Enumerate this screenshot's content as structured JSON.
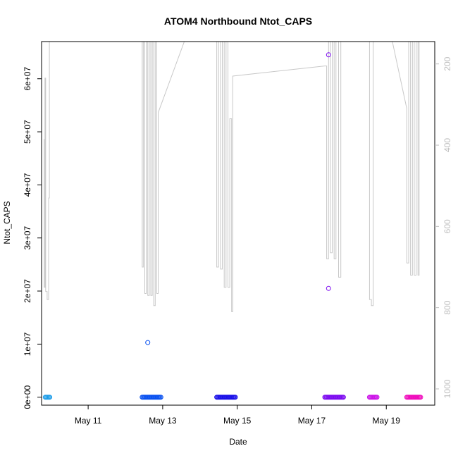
{
  "chart_data": {
    "type": "scatter",
    "title": "ATOM4 Northbound Ntot_CAPS",
    "xlabel": "Date",
    "ylabel": "Ntot_CAPS",
    "x_ticks": [
      {
        "day": 11,
        "label": "May 11"
      },
      {
        "day": 13,
        "label": "May 13"
      },
      {
        "day": 15,
        "label": "May 15"
      },
      {
        "day": 17,
        "label": "May 17"
      },
      {
        "day": 19,
        "label": "May 19"
      }
    ],
    "xlim_days": [
      9.75,
      20.3
    ],
    "ylim": [
      -1500000,
      67000000
    ],
    "y_ticks": [
      {
        "value": 0,
        "label": "0e+00"
      },
      {
        "value": 10000000,
        "label": "1e+07"
      },
      {
        "value": 20000000,
        "label": "2e+07"
      },
      {
        "value": 30000000,
        "label": "3e+07"
      },
      {
        "value": 40000000,
        "label": "4e+07"
      },
      {
        "value": 50000000,
        "label": "5e+07"
      },
      {
        "value": 60000000,
        "label": "6e+07"
      }
    ],
    "right_axis": {
      "ylim": [
        1040,
        145
      ],
      "color": "#bdbdbd",
      "ticks": [
        {
          "value": 200,
          "label": "200"
        },
        {
          "value": 400,
          "label": "400"
        },
        {
          "value": 600,
          "label": "600"
        },
        {
          "value": 800,
          "label": "800"
        },
        {
          "value": 1000,
          "label": "1000"
        }
      ]
    },
    "series": [
      {
        "color": "#1c9ce8",
        "clusters": [
          [
            9.85,
            9.97
          ]
        ],
        "outliers": []
      },
      {
        "color": "#0a52f0",
        "clusters": [
          [
            12.45,
            12.95
          ]
        ],
        "outliers": [
          [
            12.6,
            10300000
          ]
        ]
      },
      {
        "color": "#1a10e8",
        "clusters": [
          [
            14.45,
            14.95
          ]
        ],
        "outliers": []
      },
      {
        "color": "#7d0cf0",
        "clusters": [
          [
            17.35,
            17.85
          ]
        ],
        "outliers": [
          [
            17.45,
            64500000
          ],
          [
            17.45,
            20500000
          ]
        ]
      },
      {
        "color": "#cc14e8",
        "clusters": [
          [
            18.55,
            18.75
          ]
        ],
        "outliers": []
      },
      {
        "color": "#f00cbc",
        "clusters": [
          [
            19.55,
            19.92
          ]
        ],
        "outliers": []
      }
    ],
    "depth_line": {
      "color": "#c8c8c8",
      "points": [
        [
          9.82,
          385
        ],
        [
          9.82,
          750
        ],
        [
          9.84,
          750
        ],
        [
          9.84,
          235
        ],
        [
          9.86,
          235
        ],
        [
          9.86,
          760
        ],
        [
          9.9,
          760
        ],
        [
          9.9,
          780
        ],
        [
          9.94,
          780
        ],
        [
          9.94,
          530
        ],
        [
          9.96,
          530
        ],
        [
          9.96,
          140
        ],
        [
          12.45,
          140
        ],
        [
          12.45,
          700
        ],
        [
          12.48,
          700
        ],
        [
          12.48,
          140
        ],
        [
          12.52,
          140
        ],
        [
          12.52,
          765
        ],
        [
          12.56,
          765
        ],
        [
          12.56,
          140
        ],
        [
          12.6,
          140
        ],
        [
          12.6,
          770
        ],
        [
          12.64,
          770
        ],
        [
          12.64,
          140
        ],
        [
          12.68,
          140
        ],
        [
          12.68,
          770
        ],
        [
          12.72,
          770
        ],
        [
          12.72,
          140
        ],
        [
          12.76,
          140
        ],
        [
          12.76,
          795
        ],
        [
          12.8,
          795
        ],
        [
          12.8,
          140
        ],
        [
          12.84,
          140
        ],
        [
          12.84,
          765
        ],
        [
          12.88,
          765
        ],
        [
          12.88,
          320
        ],
        [
          13.6,
          140
        ],
        [
          14.45,
          140
        ],
        [
          14.45,
          700
        ],
        [
          14.5,
          700
        ],
        [
          14.5,
          140
        ],
        [
          14.55,
          140
        ],
        [
          14.55,
          705
        ],
        [
          14.6,
          705
        ],
        [
          14.6,
          140
        ],
        [
          14.65,
          140
        ],
        [
          14.65,
          750
        ],
        [
          14.7,
          750
        ],
        [
          14.7,
          140
        ],
        [
          14.75,
          140
        ],
        [
          14.75,
          750
        ],
        [
          14.8,
          750
        ],
        [
          14.8,
          335
        ],
        [
          14.85,
          335
        ],
        [
          14.85,
          810
        ],
        [
          14.88,
          810
        ],
        [
          14.88,
          230
        ],
        [
          17.35,
          205
        ],
        [
          17.4,
          205
        ],
        [
          17.4,
          680
        ],
        [
          17.45,
          680
        ],
        [
          17.45,
          140
        ],
        [
          17.5,
          140
        ],
        [
          17.5,
          665
        ],
        [
          17.55,
          665
        ],
        [
          17.55,
          140
        ],
        [
          17.6,
          140
        ],
        [
          17.6,
          680
        ],
        [
          17.65,
          680
        ],
        [
          17.65,
          140
        ],
        [
          17.72,
          140
        ],
        [
          17.72,
          725
        ],
        [
          17.78,
          725
        ],
        [
          17.78,
          140
        ],
        [
          18.55,
          140
        ],
        [
          18.55,
          780
        ],
        [
          18.6,
          780
        ],
        [
          18.6,
          795
        ],
        [
          18.65,
          795
        ],
        [
          18.65,
          140
        ],
        [
          19.15,
          140
        ],
        [
          19.55,
          310
        ],
        [
          19.55,
          690
        ],
        [
          19.6,
          690
        ],
        [
          19.6,
          140
        ],
        [
          19.65,
          140
        ],
        [
          19.65,
          720
        ],
        [
          19.7,
          720
        ],
        [
          19.7,
          140
        ],
        [
          19.75,
          140
        ],
        [
          19.75,
          720
        ],
        [
          19.8,
          720
        ],
        [
          19.8,
          140
        ],
        [
          19.85,
          140
        ],
        [
          19.85,
          720
        ],
        [
          19.88,
          720
        ],
        [
          19.88,
          140
        ]
      ]
    }
  }
}
